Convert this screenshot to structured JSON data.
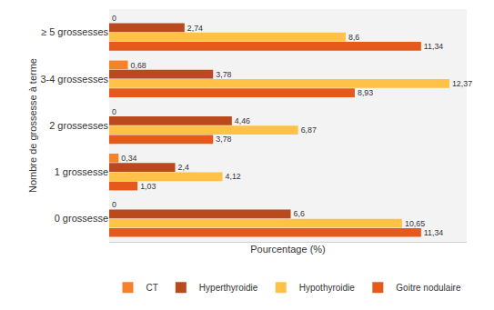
{
  "chart_data": {
    "type": "bar",
    "orientation": "horizontal",
    "x_label": "Pourcentage (%)",
    "y_label": "Nombre de grossesse à terme",
    "categories": [
      "0 grossesse",
      "1 grossesse",
      "2 grossesses",
      "3-4 grossesses",
      "≥ 5 grossesses"
    ],
    "series": [
      {
        "name": "CT",
        "color": "#F5822A",
        "values": [
          0,
          0.34,
          0,
          0.68,
          0
        ],
        "value_labels": [
          "0",
          "0,34",
          "0",
          "0,68",
          "0"
        ]
      },
      {
        "name": "Hyperthyroidie",
        "color": "#B84A1E",
        "values": [
          6.6,
          2.4,
          4.46,
          3.78,
          2.74
        ],
        "value_labels": [
          "6,6",
          "2,4",
          "4,46",
          "3,78",
          "2,74"
        ]
      },
      {
        "name": "Hypothyroidie",
        "color": "#FFC246",
        "values": [
          10.65,
          4.12,
          6.87,
          12.37,
          8.6
        ],
        "value_labels": [
          "10,65",
          "4,12",
          "6,87",
          "12,37",
          "8,6"
        ]
      },
      {
        "name": "Goitre nodulaire",
        "color": "#E55A1C",
        "values": [
          11.34,
          1.03,
          3.78,
          8.93,
          11.34
        ],
        "value_labels": [
          "11,34",
          "1,03",
          "3,78",
          "8,93",
          "11,34"
        ]
      }
    ],
    "xlim": [
      0,
      13
    ],
    "xticks": [],
    "grid": false,
    "legend": "bottom",
    "data_labels": true,
    "tick_labels": "y"
  }
}
